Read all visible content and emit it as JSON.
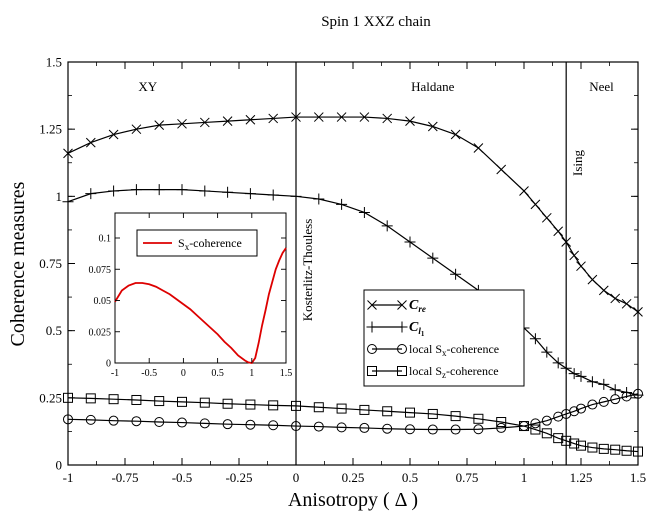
{
  "chart_data": {
    "type": "line",
    "title": "Spin 1 XXZ chain",
    "xlabel": "Anisotropy ( Δ )",
    "ylabel": "Coherence measures",
    "xlim": [
      -1,
      1.5
    ],
    "ylim": [
      0,
      1.5
    ],
    "x_ticks": [
      "-1",
      "-0.75",
      "-0.5",
      "-0.25",
      "0",
      "0.25",
      "0.5",
      "0.75",
      "1",
      "1.25",
      "1.5"
    ],
    "y_ticks": [
      "0",
      "0.25",
      "0.5",
      "0.75",
      "1",
      "1.25",
      "1.5"
    ],
    "grid": false,
    "phase_boundaries": [
      {
        "x": 0,
        "label": "Kosterlitz-Thouless"
      },
      {
        "x": 1.185,
        "label": "Ising"
      }
    ],
    "phase_labels": [
      {
        "x": -0.65,
        "y": 1.41,
        "label": "XY"
      },
      {
        "x": 0.6,
        "y": 1.41,
        "label": "Haldane"
      },
      {
        "x": 1.34,
        "y": 1.41,
        "label": "Neel"
      }
    ],
    "legend": "lower-right",
    "series": [
      {
        "name": "C_re",
        "legend_main": "C",
        "legend_sub": "re",
        "marker": "x",
        "x": [
          -1,
          -0.9,
          -0.8,
          -0.7,
          -0.6,
          -0.5,
          -0.4,
          -0.3,
          -0.2,
          -0.1,
          0,
          0.1,
          0.2,
          0.3,
          0.4,
          0.5,
          0.6,
          0.7,
          0.8,
          0.9,
          1.0,
          1.05,
          1.1,
          1.15,
          1.185,
          1.22,
          1.25,
          1.3,
          1.35,
          1.4,
          1.45,
          1.5
        ],
        "values": [
          1.16,
          1.2,
          1.23,
          1.25,
          1.265,
          1.27,
          1.275,
          1.28,
          1.285,
          1.29,
          1.295,
          1.295,
          1.295,
          1.295,
          1.29,
          1.28,
          1.26,
          1.23,
          1.18,
          1.1,
          1.02,
          0.97,
          0.92,
          0.87,
          0.83,
          0.78,
          0.74,
          0.69,
          0.65,
          0.62,
          0.6,
          0.57
        ]
      },
      {
        "name": "C_l1",
        "legend_main": "C",
        "legend_sub": "l",
        "legend_subsub": "1",
        "marker": "+",
        "x": [
          -1,
          -0.9,
          -0.8,
          -0.7,
          -0.6,
          -0.5,
          -0.4,
          -0.3,
          -0.2,
          -0.1,
          0,
          0.1,
          0.2,
          0.3,
          0.4,
          0.5,
          0.6,
          0.7,
          0.8,
          0.9,
          1.0,
          1.05,
          1.1,
          1.15,
          1.185,
          1.22,
          1.25,
          1.3,
          1.35,
          1.4,
          1.45,
          1.5
        ],
        "values": [
          0.98,
          1.01,
          1.02,
          1.025,
          1.025,
          1.025,
          1.02,
          1.015,
          1.01,
          1.005,
          1.0,
          0.99,
          0.97,
          0.94,
          0.89,
          0.83,
          0.77,
          0.71,
          0.65,
          0.58,
          0.51,
          0.47,
          0.42,
          0.38,
          0.36,
          0.34,
          0.33,
          0.31,
          0.3,
          0.28,
          0.27,
          0.26
        ]
      },
      {
        "name": "local S_x-coherence",
        "legend_main": "local S",
        "legend_sub": "x",
        "legend_tail": "-coherence",
        "marker": "o",
        "x": [
          -1,
          -0.9,
          -0.8,
          -0.7,
          -0.6,
          -0.5,
          -0.4,
          -0.3,
          -0.2,
          -0.1,
          0,
          0.1,
          0.2,
          0.3,
          0.4,
          0.5,
          0.6,
          0.7,
          0.8,
          0.9,
          1.0,
          1.05,
          1.1,
          1.15,
          1.185,
          1.22,
          1.25,
          1.3,
          1.35,
          1.4,
          1.45,
          1.5
        ],
        "values": [
          0.17,
          0.168,
          0.165,
          0.163,
          0.16,
          0.158,
          0.155,
          0.152,
          0.15,
          0.148,
          0.145,
          0.143,
          0.14,
          0.138,
          0.135,
          0.133,
          0.132,
          0.132,
          0.133,
          0.138,
          0.145,
          0.155,
          0.165,
          0.18,
          0.19,
          0.2,
          0.21,
          0.225,
          0.235,
          0.245,
          0.255,
          0.265
        ]
      },
      {
        "name": "local S_z-coherence",
        "legend_main": "local S",
        "legend_sub": "z",
        "legend_tail": "-coherence",
        "marker": "s",
        "x": [
          -1,
          -0.9,
          -0.8,
          -0.7,
          -0.6,
          -0.5,
          -0.4,
          -0.3,
          -0.2,
          -0.1,
          0,
          0.1,
          0.2,
          0.3,
          0.4,
          0.5,
          0.6,
          0.7,
          0.8,
          0.9,
          1.0,
          1.05,
          1.1,
          1.15,
          1.185,
          1.22,
          1.25,
          1.3,
          1.35,
          1.4,
          1.45,
          1.5
        ],
        "values": [
          0.25,
          0.248,
          0.245,
          0.242,
          0.238,
          0.235,
          0.232,
          0.228,
          0.225,
          0.222,
          0.22,
          0.215,
          0.21,
          0.205,
          0.2,
          0.195,
          0.19,
          0.182,
          0.172,
          0.16,
          0.145,
          0.132,
          0.118,
          0.1,
          0.09,
          0.08,
          0.072,
          0.065,
          0.06,
          0.057,
          0.053,
          0.05
        ]
      }
    ],
    "inset": {
      "type": "line",
      "xlim": [
        -1,
        1.5
      ],
      "ylim": [
        0,
        0.12
      ],
      "x_ticks": [
        "-1",
        "-0.5",
        "0",
        "0.5",
        "1",
        "1.5"
      ],
      "y_ticks": [
        "0",
        "0.025",
        "0.05",
        "0.075",
        "0.1"
      ],
      "legend": "top-left",
      "series": [
        {
          "name": "S_x-coherence",
          "legend_main": "S",
          "legend_sub": "x",
          "legend_tail": "-coherence",
          "color": "#dd0000",
          "x": [
            -1,
            -0.9,
            -0.8,
            -0.7,
            -0.6,
            -0.5,
            -0.4,
            -0.3,
            -0.2,
            -0.1,
            0,
            0.1,
            0.2,
            0.3,
            0.4,
            0.5,
            0.6,
            0.7,
            0.8,
            0.9,
            0.95,
            1.0,
            1.05,
            1.1,
            1.15,
            1.2,
            1.25,
            1.3,
            1.35,
            1.4,
            1.45,
            1.5
          ],
          "values": [
            0.049,
            0.058,
            0.062,
            0.064,
            0.064,
            0.063,
            0.061,
            0.058,
            0.055,
            0.051,
            0.047,
            0.043,
            0.038,
            0.033,
            0.028,
            0.023,
            0.017,
            0.012,
            0.006,
            0.002,
            0.0005,
            0.0,
            0.004,
            0.016,
            0.03,
            0.042,
            0.055,
            0.065,
            0.075,
            0.082,
            0.088,
            0.092
          ]
        }
      ]
    }
  }
}
